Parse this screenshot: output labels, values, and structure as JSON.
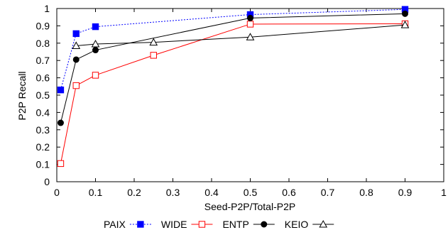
{
  "chart_data": {
    "type": "line",
    "xlabel": "Seed-P2P/Total-P2P",
    "ylabel": "P2P Recall",
    "xlim": [
      0,
      1
    ],
    "ylim": [
      0,
      1
    ],
    "xticks": [
      "0",
      "0.1",
      "0.2",
      "0.3",
      "0.4",
      "0.5",
      "0.6",
      "0.7",
      "0.8",
      "0.9",
      "1"
    ],
    "yticks": [
      "0",
      "0.1",
      "0.2",
      "0.3",
      "0.4",
      "0.5",
      "0.6",
      "0.7",
      "0.8",
      "0.9",
      "1"
    ],
    "legend_position": "bottom",
    "grid": false,
    "series": [
      {
        "name": "PAIX",
        "color": "#0000ff",
        "line_style": "dotted",
        "marker": "filled-square",
        "x": [
          0.01,
          0.05,
          0.1,
          0.5,
          0.9
        ],
        "y": [
          0.53,
          0.855,
          0.895,
          0.965,
          0.995
        ]
      },
      {
        "name": "WIDE",
        "color": "#ff0000",
        "line_style": "solid",
        "marker": "open-square",
        "x": [
          0.01,
          0.05,
          0.1,
          0.25,
          0.5,
          0.9
        ],
        "y": [
          0.105,
          0.555,
          0.615,
          0.73,
          0.91,
          0.912
        ]
      },
      {
        "name": "ENTP",
        "color": "#000000",
        "line_style": "solid",
        "marker": "filled-circle",
        "x": [
          0.01,
          0.05,
          0.1,
          0.5,
          0.9
        ],
        "y": [
          0.34,
          0.705,
          0.76,
          0.945,
          0.97
        ]
      },
      {
        "name": "KEIO",
        "color": "#000000",
        "line_style": "solid",
        "marker": "open-triangle",
        "x": [
          0.05,
          0.1,
          0.25,
          0.5,
          0.9
        ],
        "y": [
          0.785,
          0.795,
          0.805,
          0.835,
          0.905
        ]
      }
    ]
  }
}
